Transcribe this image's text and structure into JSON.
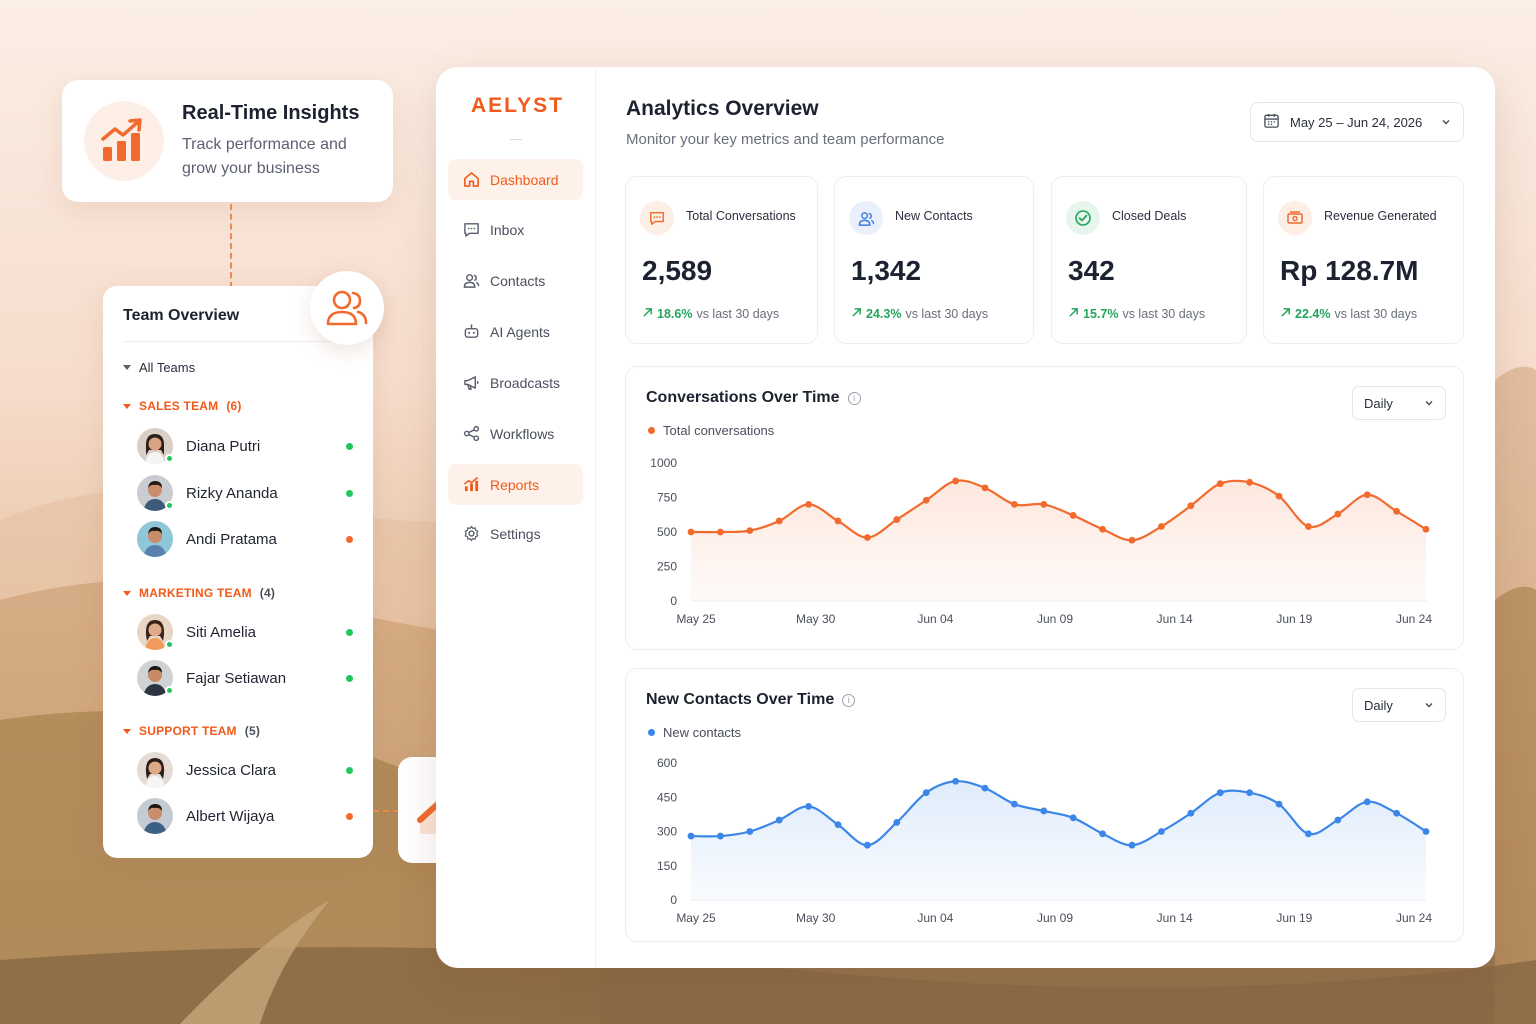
{
  "insight_card": {
    "title": "Real-Time Insights",
    "subtitle": "Track performance and grow your business",
    "icon": "bar-chart-trend-icon"
  },
  "team_card": {
    "title": "Team Overview",
    "all_teams_label": "All Teams",
    "groups": [
      {
        "name": "SALES TEAM",
        "count": "(6)",
        "members": [
          {
            "name": "Diana Putri",
            "status_color": "#22c55e",
            "online": true
          },
          {
            "name": "Rizky Ananda",
            "status_color": "#22c55e",
            "online": true
          },
          {
            "name": "Andi Pratama",
            "status_color": "#f26a2e",
            "online": false
          }
        ]
      },
      {
        "name": "MARKETING TEAM",
        "count": "(4)",
        "members": [
          {
            "name": "Siti Amelia",
            "status_color": "#22c55e",
            "online": true
          },
          {
            "name": "Fajar Setiawan",
            "status_color": "#22c55e",
            "online": true
          }
        ]
      },
      {
        "name": "SUPPORT TEAM",
        "count": "(5)",
        "members": [
          {
            "name": "Jessica Clara",
            "status_color": "#22c55e",
            "online": false
          },
          {
            "name": "Albert Wijaya",
            "status_color": "#f26a2e",
            "online": false
          }
        ]
      }
    ]
  },
  "app": {
    "logo": "AELYST",
    "nav": [
      {
        "label": "Dashboard",
        "icon": "home-icon",
        "active": true
      },
      {
        "label": "Inbox",
        "icon": "chat-icon",
        "active": false
      },
      {
        "label": "Contacts",
        "icon": "users-icon",
        "active": false
      },
      {
        "label": "AI Agents",
        "icon": "robot-icon",
        "active": false
      },
      {
        "label": "Broadcasts",
        "icon": "megaphone-icon",
        "active": false
      },
      {
        "label": "Workflows",
        "icon": "workflow-icon",
        "active": false
      },
      {
        "label": "Reports",
        "icon": "bar-chart-icon",
        "active": true
      },
      {
        "label": "Settings",
        "icon": "gear-icon",
        "active": false
      }
    ],
    "header": {
      "title": "Analytics Overview",
      "subtitle": "Monitor your key metrics and team performance",
      "date_range": "May 25 – Jun 24, 2026"
    },
    "kpis": [
      {
        "label": "Total Conversations",
        "value": "2,589",
        "delta": "18.6%",
        "delta_suffix": "vs last 30 days",
        "icon": "chat-bubble-icon",
        "color": "#f26a2e"
      },
      {
        "label": "New Contacts",
        "value": "1,342",
        "delta": "24.3%",
        "delta_suffix": "vs last 30 days",
        "icon": "users-icon",
        "color": "#3b7ddd"
      },
      {
        "label": "Closed Deals",
        "value": "342",
        "delta": "15.7%",
        "delta_suffix": "vs last 30 days",
        "icon": "check-circle-icon",
        "color": "#22a55a"
      },
      {
        "label": "Revenue Generated",
        "value": "Rp 128.7M",
        "delta": "22.4%",
        "delta_suffix": "vs last 30 days",
        "icon": "cash-icon",
        "color": "#f26a2e"
      }
    ],
    "accent": "#f05a1a",
    "success": "#22a55a"
  },
  "chart_data": [
    {
      "type": "line",
      "title": "Conversations Over Time",
      "period_select": "Daily",
      "series": [
        {
          "name": "Total conversations",
          "color": "#f26a2e",
          "values": [
            500,
            500,
            510,
            580,
            700,
            580,
            460,
            590,
            730,
            870,
            820,
            700,
            700,
            620,
            520,
            440,
            540,
            690,
            850,
            860,
            760,
            540,
            630,
            770,
            650,
            520
          ]
        }
      ],
      "x_ticks": [
        "May 25",
        "May 30",
        "Jun 04",
        "Jun 09",
        "Jun 14",
        "Jun 19",
        "Jun 24"
      ],
      "y_ticks": [
        "1000",
        "750",
        "500",
        "250",
        "0"
      ],
      "ylim": [
        0,
        1000
      ]
    },
    {
      "type": "line",
      "title": "New Contacts Over Time",
      "period_select": "Daily",
      "series": [
        {
          "name": "New contacts",
          "color": "#3b86e8",
          "values": [
            280,
            280,
            300,
            350,
            410,
            330,
            240,
            340,
            470,
            520,
            490,
            420,
            390,
            360,
            290,
            240,
            300,
            380,
            470,
            470,
            420,
            290,
            350,
            430,
            380,
            300
          ]
        }
      ],
      "x_ticks": [
        "May 25",
        "May 30",
        "Jun 04",
        "Jun 09",
        "Jun 14",
        "Jun 19",
        "Jun 24"
      ],
      "y_ticks": [
        "600",
        "450",
        "300",
        "150",
        "0"
      ],
      "ylim": [
        0,
        600
      ]
    }
  ]
}
